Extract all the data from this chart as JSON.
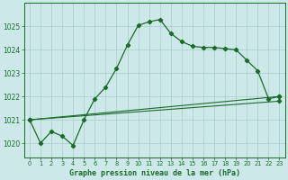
{
  "title": "Graphe pression niveau de la mer (hPa)",
  "background_color": "#cce8e8",
  "line_color": "#1a6b2a",
  "grid_color": "#aacccc",
  "ylim": [
    1019.4,
    1026.0
  ],
  "xlim": [
    -0.5,
    23.5
  ],
  "yticks": [
    1020,
    1021,
    1022,
    1023,
    1024,
    1025
  ],
  "xticks": [
    0,
    1,
    2,
    3,
    4,
    5,
    6,
    7,
    8,
    9,
    10,
    11,
    12,
    13,
    14,
    15,
    16,
    17,
    18,
    19,
    20,
    21,
    22,
    23
  ],
  "series1_x": [
    0,
    1,
    2,
    3,
    4,
    5,
    6,
    7,
    8,
    9,
    10,
    11,
    12,
    13,
    14,
    15,
    16,
    17,
    18,
    19,
    20,
    21,
    22,
    23
  ],
  "series1_y": [
    1021.0,
    1020.0,
    1020.5,
    1020.3,
    1019.9,
    1021.0,
    1021.9,
    1022.4,
    1023.2,
    1024.2,
    1025.05,
    1025.2,
    1025.3,
    1024.7,
    1024.35,
    1024.15,
    1024.1,
    1024.1,
    1024.05,
    1024.0,
    1023.55,
    1023.1,
    1021.9,
    1022.0
  ],
  "series2_x": [
    0,
    23
  ],
  "series2_y": [
    1021.0,
    1022.0
  ],
  "series3_x": [
    0,
    23
  ],
  "series3_y": [
    1021.0,
    1021.8
  ]
}
